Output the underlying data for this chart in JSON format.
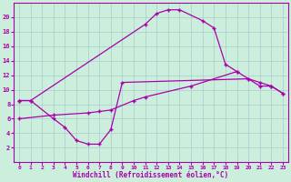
{
  "xlabel": "Windchill (Refroidissement éolien,°C)",
  "background_color": "#cceedd",
  "grid_color": "#aacccc",
  "line_color": "#aa00aa",
  "line1_x": [
    0,
    1,
    11,
    12,
    13,
    14,
    16,
    17,
    18,
    19
  ],
  "line1_y": [
    8.5,
    8.5,
    19.0,
    20.5,
    21.0,
    21.0,
    19.5,
    18.5,
    13.5,
    12.5
  ],
  "line2_x": [
    0,
    1,
    3,
    4,
    5,
    6,
    7,
    8,
    9,
    20,
    21,
    22,
    23
  ],
  "line2_y": [
    8.5,
    8.5,
    6.0,
    4.8,
    3.0,
    2.5,
    2.5,
    4.5,
    11.0,
    11.5,
    10.5,
    10.5,
    9.5
  ],
  "line3_x": [
    0,
    3,
    6,
    7,
    8,
    10,
    11,
    15,
    19,
    20,
    21,
    22,
    23
  ],
  "line3_y": [
    6.0,
    6.5,
    6.8,
    7.0,
    7.2,
    8.5,
    9.0,
    10.5,
    12.5,
    11.5,
    11.0,
    10.5,
    9.5
  ],
  "ylim": [
    0,
    22
  ],
  "xlim": [
    -0.5,
    23.5
  ],
  "yticks": [
    2,
    4,
    6,
    8,
    10,
    12,
    14,
    16,
    18,
    20
  ],
  "xticks": [
    0,
    1,
    2,
    3,
    4,
    5,
    6,
    7,
    8,
    9,
    10,
    11,
    12,
    13,
    14,
    15,
    16,
    17,
    18,
    19,
    20,
    21,
    22,
    23
  ]
}
